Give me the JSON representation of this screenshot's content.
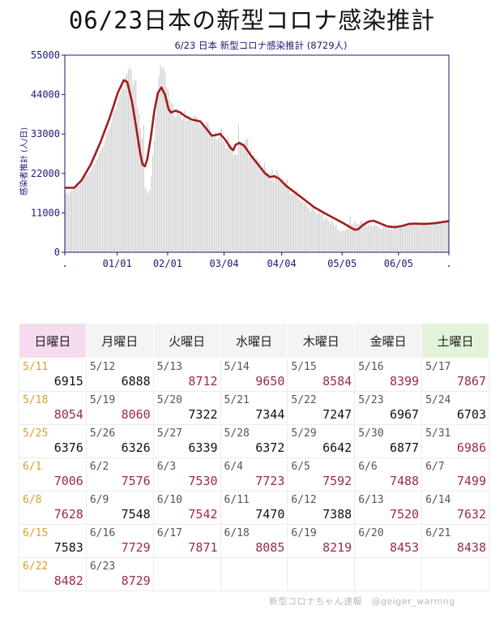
{
  "title": "06/23日本の新型コロナ感染推計",
  "credit": "新型コロナちゃん速報　@geiger_warning",
  "colors": {
    "line": "#a11d1d",
    "bar": "#c9c9c9",
    "axis": "#1a1a7a",
    "sun_bg": "#f5dcef",
    "sat_bg": "#e3f3da",
    "high_value": "#9c2a4a",
    "sunday_date": "#d4a12a"
  },
  "chart_data": {
    "type": "bar+line",
    "title": "6/23 日本 新型コロナ感染推計 (8729人)",
    "ylabel": "感染者推計 (人/日)",
    "ylim": [
      0,
      55000
    ],
    "yticks": [
      "0",
      "11000",
      "22000",
      "33000",
      "44000",
      "55000"
    ],
    "xticks": [
      ".",
      "01/01",
      "02/01",
      "03/04",
      "04/04",
      "05/05",
      "06/05",
      "."
    ],
    "grid": false,
    "series_bars_note": "daily estimates (bars)",
    "line_points": [
      [
        0,
        18000
      ],
      [
        8,
        18000
      ],
      [
        14,
        20000
      ],
      [
        22,
        24500
      ],
      [
        30,
        30500
      ],
      [
        38,
        37500
      ],
      [
        45,
        44500
      ],
      [
        50,
        48000
      ],
      [
        53,
        47500
      ],
      [
        57,
        42000
      ],
      [
        61,
        34000
      ],
      [
        64,
        27500
      ],
      [
        66,
        24500
      ],
      [
        68,
        24000
      ],
      [
        70,
        26000
      ],
      [
        73,
        32000
      ],
      [
        76,
        39500
      ],
      [
        79,
        44500
      ],
      [
        82,
        46000
      ],
      [
        85,
        44000
      ],
      [
        88,
        40000
      ],
      [
        90,
        39000
      ],
      [
        94,
        39500
      ],
      [
        98,
        39000
      ],
      [
        102,
        38000
      ],
      [
        108,
        37000
      ],
      [
        115,
        36500
      ],
      [
        120,
        34500
      ],
      [
        125,
        32500
      ],
      [
        132,
        33000
      ],
      [
        136,
        31500
      ],
      [
        141,
        29000
      ],
      [
        143,
        28500
      ],
      [
        145,
        30000
      ],
      [
        148,
        30500
      ],
      [
        152,
        29800
      ],
      [
        158,
        27000
      ],
      [
        164,
        24500
      ],
      [
        170,
        22000
      ],
      [
        174,
        21000
      ],
      [
        178,
        21200
      ],
      [
        182,
        20500
      ],
      [
        188,
        18500
      ],
      [
        196,
        16500
      ],
      [
        204,
        14500
      ],
      [
        212,
        12500
      ],
      [
        220,
        11000
      ],
      [
        228,
        9600
      ],
      [
        236,
        8200
      ],
      [
        242,
        7000
      ],
      [
        246,
        6300
      ],
      [
        249,
        6400
      ],
      [
        253,
        7600
      ],
      [
        258,
        8600
      ],
      [
        262,
        8800
      ],
      [
        268,
        8000
      ],
      [
        274,
        7200
      ],
      [
        280,
        7000
      ],
      [
        286,
        7300
      ],
      [
        292,
        7900
      ],
      [
        298,
        8000
      ],
      [
        304,
        7900
      ],
      [
        310,
        8000
      ],
      [
        316,
        8200
      ],
      [
        322,
        8500
      ],
      [
        326,
        8700
      ]
    ],
    "bars": [
      16500,
      17000,
      16000,
      16800,
      17300,
      17600,
      18200,
      18000,
      18600,
      18700,
      19300,
      19900,
      20700,
      21300,
      21500,
      22100,
      22500,
      23400,
      24400,
      24700,
      25800,
      26200,
      27400,
      28300,
      29300,
      29600,
      31400,
      33500,
      34000,
      35000,
      36200,
      38800,
      39700,
      40300,
      41900,
      43600,
      44400,
      46300,
      45600,
      48800,
      49900,
      51000,
      51700,
      50700,
      46700,
      48200,
      47900,
      40400,
      38500,
      34500,
      31900,
      35600,
      18000,
      17200,
      16400,
      17300,
      21100,
      27100,
      31100,
      37900,
      43300,
      49000,
      52300,
      51300,
      51700,
      50100,
      46000,
      45300,
      42700,
      41800,
      41500,
      38400,
      37700,
      40300,
      38500,
      39400,
      36900,
      37300,
      39600,
      36700,
      38200,
      38200,
      36800,
      36100,
      38100,
      37900,
      37700,
      36100,
      35300,
      35700,
      36100,
      35400,
      36500,
      36300,
      34900,
      33000,
      33000,
      31700,
      33600,
      31300,
      32000,
      34000,
      34600,
      31000,
      30500,
      28900,
      32600,
      29200,
      29900,
      29700,
      27100,
      27500,
      27100,
      35500,
      31000,
      30300,
      30000,
      30600,
      31600,
      31600,
      26600,
      28800,
      26500,
      27000,
      25800,
      26300,
      25200,
      25600,
      23300,
      24000,
      25000,
      23400,
      22300,
      22200,
      20100,
      23200,
      19500,
      21400,
      22900,
      22000,
      20500,
      20300,
      20600,
      19300,
      20000,
      20400,
      17400,
      16200,
      16500,
      16000,
      16300,
      17400,
      15200,
      14600,
      14100,
      14200,
      13500,
      14500,
      12800,
      12400,
      11400,
      12500,
      13200,
      11500,
      10800,
      10800,
      11700,
      10400,
      11300,
      8900,
      9900,
      9400,
      8800,
      7900,
      9000,
      8400,
      7400,
      7600,
      6200,
      6200,
      5500,
      6300,
      5800,
      6300,
      6300,
      8000,
      10000,
      7800,
      7800,
      8600,
      8000,
      7600,
      7900,
      8900,
      8700,
      7300,
      8400,
      7100,
      7900,
      7300,
      7600,
      7100,
      7800,
      7300,
      7400,
      6800,
      6500,
      6600,
      7300,
      6900,
      6300,
      6900,
      6300,
      7600,
      6400,
      8100,
      7700,
      7100,
      7600,
      6900,
      6900,
      7000,
      7500,
      7800,
      7400,
      7700,
      8400,
      7900,
      7500,
      7900,
      8000,
      7600,
      7600,
      7700,
      8400,
      8200,
      7900,
      7700,
      7400,
      7600,
      7700,
      8000,
      8200,
      8500,
      8400,
      8100,
      8300,
      8400,
      8600,
      8700,
      8700
    ]
  },
  "calendar": {
    "headers": [
      "日曜日",
      "月曜日",
      "火曜日",
      "水曜日",
      "木曜日",
      "金曜日",
      "土曜日"
    ],
    "weeks": [
      [
        [
          "5/11",
          "6915",
          false
        ],
        [
          "5/12",
          "6888",
          false
        ],
        [
          "5/13",
          "8712",
          true
        ],
        [
          "5/14",
          "9650",
          true
        ],
        [
          "5/15",
          "8584",
          true
        ],
        [
          "5/16",
          "8399",
          true
        ],
        [
          "5/17",
          "7867",
          true
        ]
      ],
      [
        [
          "5/18",
          "8054",
          true
        ],
        [
          "5/19",
          "8060",
          true
        ],
        [
          "5/20",
          "7322",
          false
        ],
        [
          "5/21",
          "7344",
          false
        ],
        [
          "5/22",
          "7247",
          false
        ],
        [
          "5/23",
          "6967",
          false
        ],
        [
          "5/24",
          "6703",
          false
        ]
      ],
      [
        [
          "5/25",
          "6376",
          false
        ],
        [
          "5/26",
          "6326",
          false
        ],
        [
          "5/27",
          "6339",
          false
        ],
        [
          "5/28",
          "6372",
          false
        ],
        [
          "5/29",
          "6642",
          false
        ],
        [
          "5/30",
          "6877",
          false
        ],
        [
          "5/31",
          "6986",
          true
        ]
      ],
      [
        [
          "6/1",
          "7006",
          true
        ],
        [
          "6/2",
          "7576",
          true
        ],
        [
          "6/3",
          "7530",
          true
        ],
        [
          "6/4",
          "7723",
          true
        ],
        [
          "6/5",
          "7592",
          true
        ],
        [
          "6/6",
          "7488",
          true
        ],
        [
          "6/7",
          "7499",
          true
        ]
      ],
      [
        [
          "6/8",
          "7628",
          true
        ],
        [
          "6/9",
          "7548",
          false
        ],
        [
          "6/10",
          "7542",
          true
        ],
        [
          "6/11",
          "7470",
          false
        ],
        [
          "6/12",
          "7388",
          false
        ],
        [
          "6/13",
          "7520",
          true
        ],
        [
          "6/14",
          "7632",
          true
        ]
      ],
      [
        [
          "6/15",
          "7583",
          false
        ],
        [
          "6/16",
          "7729",
          true
        ],
        [
          "6/17",
          "7871",
          true
        ],
        [
          "6/18",
          "8085",
          true
        ],
        [
          "6/19",
          "8219",
          true
        ],
        [
          "6/20",
          "8453",
          true
        ],
        [
          "6/21",
          "8438",
          true
        ]
      ],
      [
        [
          "6/22",
          "8482",
          true
        ],
        [
          "6/23",
          "8729",
          true
        ],
        [
          "",
          "",
          false
        ],
        [
          "",
          "",
          false
        ],
        [
          "",
          "",
          false
        ],
        [
          "",
          "",
          false
        ],
        [
          "",
          "",
          false
        ]
      ]
    ]
  }
}
